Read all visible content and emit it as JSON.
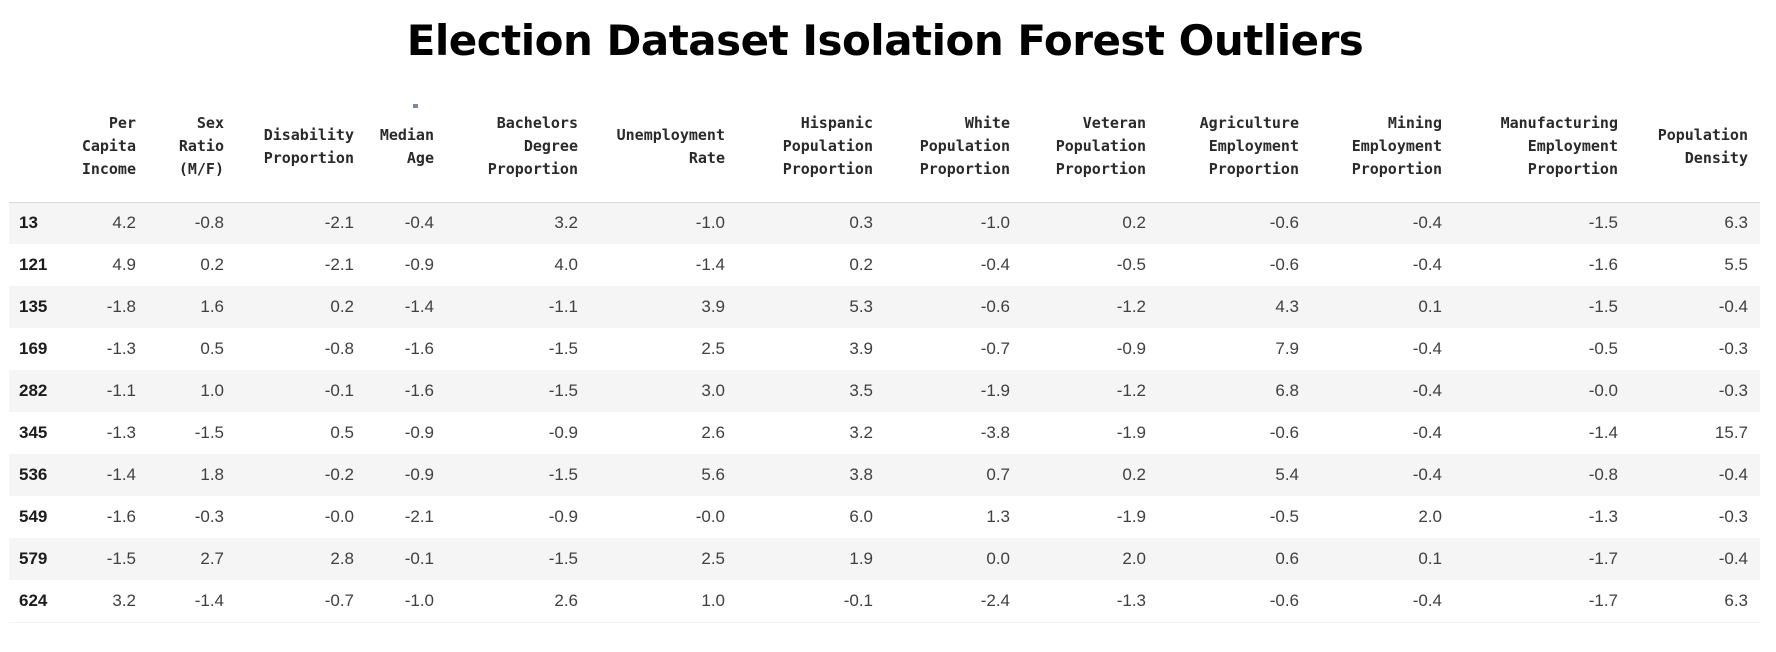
{
  "chart_data": {
    "type": "table",
    "title": "Election Dataset Isolation Forest Outliers",
    "columns": [
      "Per Capita Income",
      "Sex Ratio (M/F)",
      "Disability Proportion",
      "Median Age",
      "Bachelors Degree Proportion",
      "Unemployment Rate",
      "Hispanic Population Proportion",
      "White Population Proportion",
      "Veteran Population Proportion",
      "Agriculture Employment Proportion",
      "Mining Employment Proportion",
      "Manufacturing Employment Proportion",
      "Population Density"
    ],
    "index_column": [
      "13",
      "121",
      "135",
      "169",
      "282",
      "345",
      "536",
      "549",
      "579",
      "624"
    ],
    "rows": [
      [
        "4.2",
        "-0.8",
        "-2.1",
        "-0.4",
        "3.2",
        "-1.0",
        "0.3",
        "-1.0",
        "0.2",
        "-0.6",
        "-0.4",
        "-1.5",
        "6.3"
      ],
      [
        "4.9",
        "0.2",
        "-2.1",
        "-0.9",
        "4.0",
        "-1.4",
        "0.2",
        "-0.4",
        "-0.5",
        "-0.6",
        "-0.4",
        "-1.6",
        "5.5"
      ],
      [
        "-1.8",
        "1.6",
        "0.2",
        "-1.4",
        "-1.1",
        "3.9",
        "5.3",
        "-0.6",
        "-1.2",
        "4.3",
        "0.1",
        "-1.5",
        "-0.4"
      ],
      [
        "-1.3",
        "0.5",
        "-0.8",
        "-1.6",
        "-1.5",
        "2.5",
        "3.9",
        "-0.7",
        "-0.9",
        "7.9",
        "-0.4",
        "-0.5",
        "-0.3"
      ],
      [
        "-1.1",
        "1.0",
        "-0.1",
        "-1.6",
        "-1.5",
        "3.0",
        "3.5",
        "-1.9",
        "-1.2",
        "6.8",
        "-0.4",
        "-0.0",
        "-0.3"
      ],
      [
        "-1.3",
        "-1.5",
        "0.5",
        "-0.9",
        "-0.9",
        "2.6",
        "3.2",
        "-3.8",
        "-1.9",
        "-0.6",
        "-0.4",
        "-1.4",
        "15.7"
      ],
      [
        "-1.4",
        "1.8",
        "-0.2",
        "-0.9",
        "-1.5",
        "5.6",
        "3.8",
        "0.7",
        "0.2",
        "5.4",
        "-0.4",
        "-0.8",
        "-0.4"
      ],
      [
        "-1.6",
        "-0.3",
        "-0.0",
        "-2.1",
        "-0.9",
        "-0.0",
        "6.0",
        "1.3",
        "-1.9",
        "-0.5",
        "2.0",
        "-1.3",
        "-0.3"
      ],
      [
        "-1.5",
        "2.7",
        "2.8",
        "-0.1",
        "-1.5",
        "2.5",
        "1.9",
        "0.0",
        "2.0",
        "0.6",
        "0.1",
        "-1.7",
        "-0.4"
      ],
      [
        "3.2",
        "-1.4",
        "-0.7",
        "-1.0",
        "2.6",
        "1.0",
        "-0.1",
        "-2.4",
        "-1.3",
        "-0.6",
        "-0.4",
        "-1.7",
        "6.3"
      ]
    ]
  },
  "display": {
    "header_lines": [
      "Per\nCapita\nIncome",
      "Sex\nRatio\n(M/F)",
      "Disability\nProportion",
      "Median\nAge",
      "Bachelors\nDegree\nProportion",
      "Unemployment\nRate",
      "Hispanic\nPopulation\nProportion",
      "White\nPopulation\nProportion",
      "Veteran\nPopulation\nProportion",
      "Agriculture\nEmployment\nProportion",
      "Mining\nEmployment\nProportion",
      "Manufacturing\nEmployment\nProportion",
      "Population\nDensity"
    ],
    "index_header_label": "",
    "colors": {
      "stripe": "#f5f5f6",
      "header_rule": "#d9d9d9",
      "title_text": "#000000",
      "header_text": "#2a2a2a",
      "body_text": "#404040",
      "index_text": "#1c1c1c"
    }
  }
}
